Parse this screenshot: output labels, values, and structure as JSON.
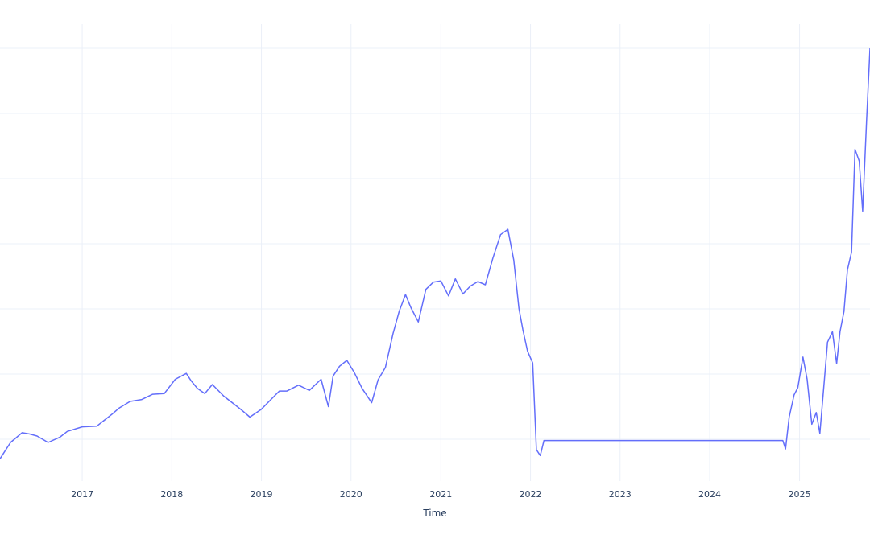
{
  "chart_data": {
    "type": "line",
    "title": "",
    "xlabel": "Time",
    "ylabel": "",
    "x_tick_labels": [
      "2017",
      "2018",
      "2019",
      "2020",
      "2021",
      "2022",
      "2023",
      "2024",
      "2025"
    ],
    "xlim": [
      "2016-02-01",
      "2025-10-15"
    ],
    "ylim": [
      0,
      63
    ],
    "y_gridlines": [
      0,
      10,
      20,
      30,
      40,
      50,
      60
    ],
    "grid": true,
    "legend": "none",
    "series": [
      {
        "color": "#636efa",
        "x": [
          "2016-02-01",
          "2016-03-15",
          "2016-05-01",
          "2016-06-01",
          "2016-07-01",
          "2016-08-15",
          "2016-10-01",
          "2016-11-01",
          "2017-01-01",
          "2017-03-01",
          "2017-05-01",
          "2017-06-01",
          "2017-07-15",
          "2017-09-01",
          "2017-10-15",
          "2017-12-01",
          "2018-01-15",
          "2018-03-01",
          "2018-03-20",
          "2018-04-15",
          "2018-05-15",
          "2018-06-15",
          "2018-08-01",
          "2018-09-15",
          "2018-10-15",
          "2018-11-15",
          "2019-01-01",
          "2019-02-01",
          "2019-03-15",
          "2019-04-15",
          "2019-06-01",
          "2019-07-15",
          "2019-09-01",
          "2019-10-01",
          "2019-10-20",
          "2019-11-15",
          "2019-12-15",
          "2020-01-15",
          "2020-02-15",
          "2020-03-25",
          "2020-04-20",
          "2020-05-20",
          "2020-06-20",
          "2020-07-15",
          "2020-08-10",
          "2020-09-01",
          "2020-10-01",
          "2020-11-01",
          "2020-12-01",
          "2021-01-01",
          "2021-02-01",
          "2021-03-01",
          "2021-04-01",
          "2021-05-01",
          "2021-06-01",
          "2021-07-01",
          "2021-08-01",
          "2021-09-01",
          "2021-10-01",
          "2021-10-25",
          "2021-11-15",
          "2021-12-01",
          "2021-12-20",
          "2022-01-10",
          "2022-01-25",
          "2022-02-10",
          "2022-02-25",
          "2022-06-25",
          "2024-10-25",
          "2024-11-05",
          "2024-11-20",
          "2024-12-10",
          "2024-12-25",
          "2025-01-15",
          "2025-02-01",
          "2025-02-20",
          "2025-03-10",
          "2025-03-25",
          "2025-04-10",
          "2025-04-25",
          "2025-05-15",
          "2025-06-01",
          "2025-06-15",
          "2025-07-01",
          "2025-07-15",
          "2025-08-01",
          "2025-08-15",
          "2025-09-01",
          "2025-09-15",
          "2025-10-01",
          "2025-10-15"
        ],
        "y": [
          -3.0,
          -0.5,
          1.0,
          0.8,
          0.5,
          -0.5,
          0.3,
          1.2,
          1.9,
          2.0,
          3.8,
          4.8,
          5.8,
          6.1,
          6.9,
          7.0,
          9.2,
          10.1,
          9.0,
          7.8,
          7.0,
          8.4,
          6.6,
          5.3,
          4.4,
          3.4,
          4.6,
          5.8,
          7.4,
          7.4,
          8.3,
          7.5,
          9.2,
          5.0,
          9.7,
          11.2,
          12.1,
          10.2,
          7.8,
          5.6,
          9.1,
          11.0,
          16.2,
          19.6,
          22.2,
          20.2,
          18.0,
          23.0,
          24.1,
          24.3,
          22.0,
          24.6,
          22.3,
          23.5,
          24.2,
          23.7,
          27.8,
          31.4,
          32.2,
          27.5,
          20.1,
          16.8,
          13.5,
          11.7,
          -1.6,
          -2.5,
          -0.2,
          -0.2,
          -0.2,
          -1.5,
          3.4,
          6.8,
          7.9,
          12.6,
          9.2,
          2.3,
          4.1,
          0.9,
          8.1,
          14.9,
          16.5,
          11.6,
          16.5,
          19.6,
          26.0,
          28.7,
          44.5,
          42.7,
          35.0,
          48.7,
          60.0
        ]
      }
    ]
  }
}
